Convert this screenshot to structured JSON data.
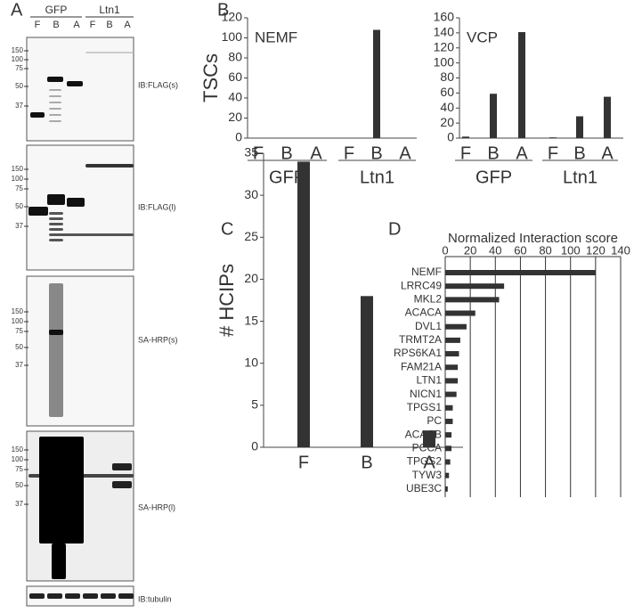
{
  "panel_labels": [
    "A",
    "B",
    "C",
    "D"
  ],
  "panel_a": {
    "groups": [
      "GFP",
      "Ltn1"
    ],
    "lanes": [
      "F",
      "B",
      "A",
      "F",
      "B",
      "A"
    ],
    "blots": [
      {
        "label": "IB:FLAG(s)",
        "markers": [
          150,
          100,
          75,
          50,
          37
        ]
      },
      {
        "label": "IB:FLAG(l)",
        "markers": [
          150,
          100,
          75,
          50,
          37
        ]
      },
      {
        "label": "SA-HRP(s)",
        "markers": [
          150,
          100,
          75,
          50,
          37
        ]
      },
      {
        "label": "SA-HRP(l)",
        "markers": [
          150,
          100,
          75,
          50,
          37
        ]
      },
      {
        "label": "IB:tubulin",
        "markers": []
      }
    ]
  },
  "chart_data": [
    {
      "type": "bar",
      "title": "NEMF",
      "y_label": "TSCs",
      "categories": [
        "F",
        "B",
        "A",
        "F",
        "B",
        "A"
      ],
      "groups": [
        "GFP",
        "Ltn1"
      ],
      "values": [
        0,
        0,
        0,
        0,
        108,
        0
      ],
      "color": "#333333",
      "ylim": [
        0,
        120
      ],
      "yticks": [
        0,
        20,
        40,
        60,
        80,
        100,
        120
      ]
    },
    {
      "type": "bar",
      "title": "VCP",
      "categories": [
        "F",
        "B",
        "A",
        "F",
        "B",
        "A"
      ],
      "groups": [
        "GFP",
        "Ltn1"
      ],
      "values": [
        2,
        59,
        141,
        1,
        29,
        55
      ],
      "color": "#333333",
      "ylim": [
        0,
        160
      ],
      "yticks": [
        0,
        20,
        40,
        60,
        80,
        100,
        120,
        140,
        160
      ]
    },
    {
      "type": "bar",
      "y_label": "# HCIPs",
      "categories": [
        "F",
        "B",
        "A"
      ],
      "values": [
        34,
        18,
        2
      ],
      "color": "#333333",
      "ylim": [
        0,
        35
      ],
      "yticks": [
        0,
        5,
        10,
        15,
        20,
        25,
        30,
        35
      ]
    },
    {
      "type": "hbar",
      "x_label": "Normalized Interaction score",
      "categories": [
        "NEMF",
        "LRRC49",
        "MKL2",
        "ACACA",
        "DVL1",
        "TRMT2A",
        "RPS6KA1",
        "FAM21A",
        "LTN1",
        "NICN1",
        "TPGS1",
        "PC",
        "ACACB",
        "PCCA",
        "TPGS2",
        "TYW3",
        "UBE3C"
      ],
      "values": [
        120,
        47,
        43,
        24,
        17,
        12,
        11,
        10,
        10,
        9,
        6,
        6,
        5,
        5,
        4,
        3,
        2
      ],
      "color": "#333333",
      "xlim": [
        0,
        140
      ],
      "xticks": [
        0,
        20,
        40,
        60,
        80,
        100,
        120,
        140
      ],
      "grid": true
    }
  ]
}
